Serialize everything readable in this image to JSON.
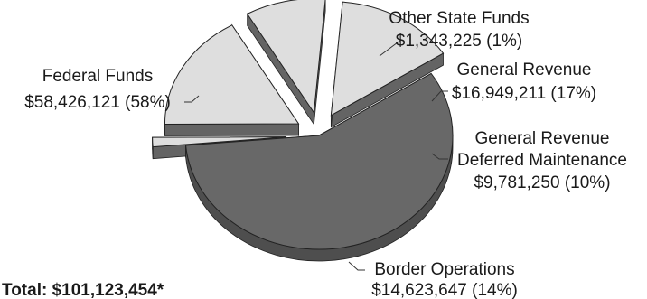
{
  "chart_data": {
    "type": "pie",
    "style": "3d-exploded",
    "slices": [
      {
        "name": "Federal Funds",
        "value": 58426121,
        "value_label": "$58,426,121 (58%)",
        "percent": 58,
        "color": "#686868"
      },
      {
        "name": "Other State Funds",
        "value": 1343225,
        "value_label": "$1,343,225 (1%)",
        "percent": 1,
        "color": "#dedede"
      },
      {
        "name": "General Revenue",
        "value": 16949211,
        "value_label": "$16,949,211 (17%)",
        "percent": 17,
        "color": "#dedede"
      },
      {
        "name": "General Revenue Deferred Maintenance",
        "name_lines": [
          "General Revenue",
          "Deferred Maintenance"
        ],
        "value": 9781250,
        "value_label": "$9,781,250 (10%)",
        "percent": 10,
        "color": "#dedede"
      },
      {
        "name": "Border Operations",
        "value": 14623647,
        "value_label": "$14,623,647 (14%)",
        "percent": 14,
        "color": "#dedede"
      }
    ],
    "total_label": "Total:  $101,123,454*"
  }
}
